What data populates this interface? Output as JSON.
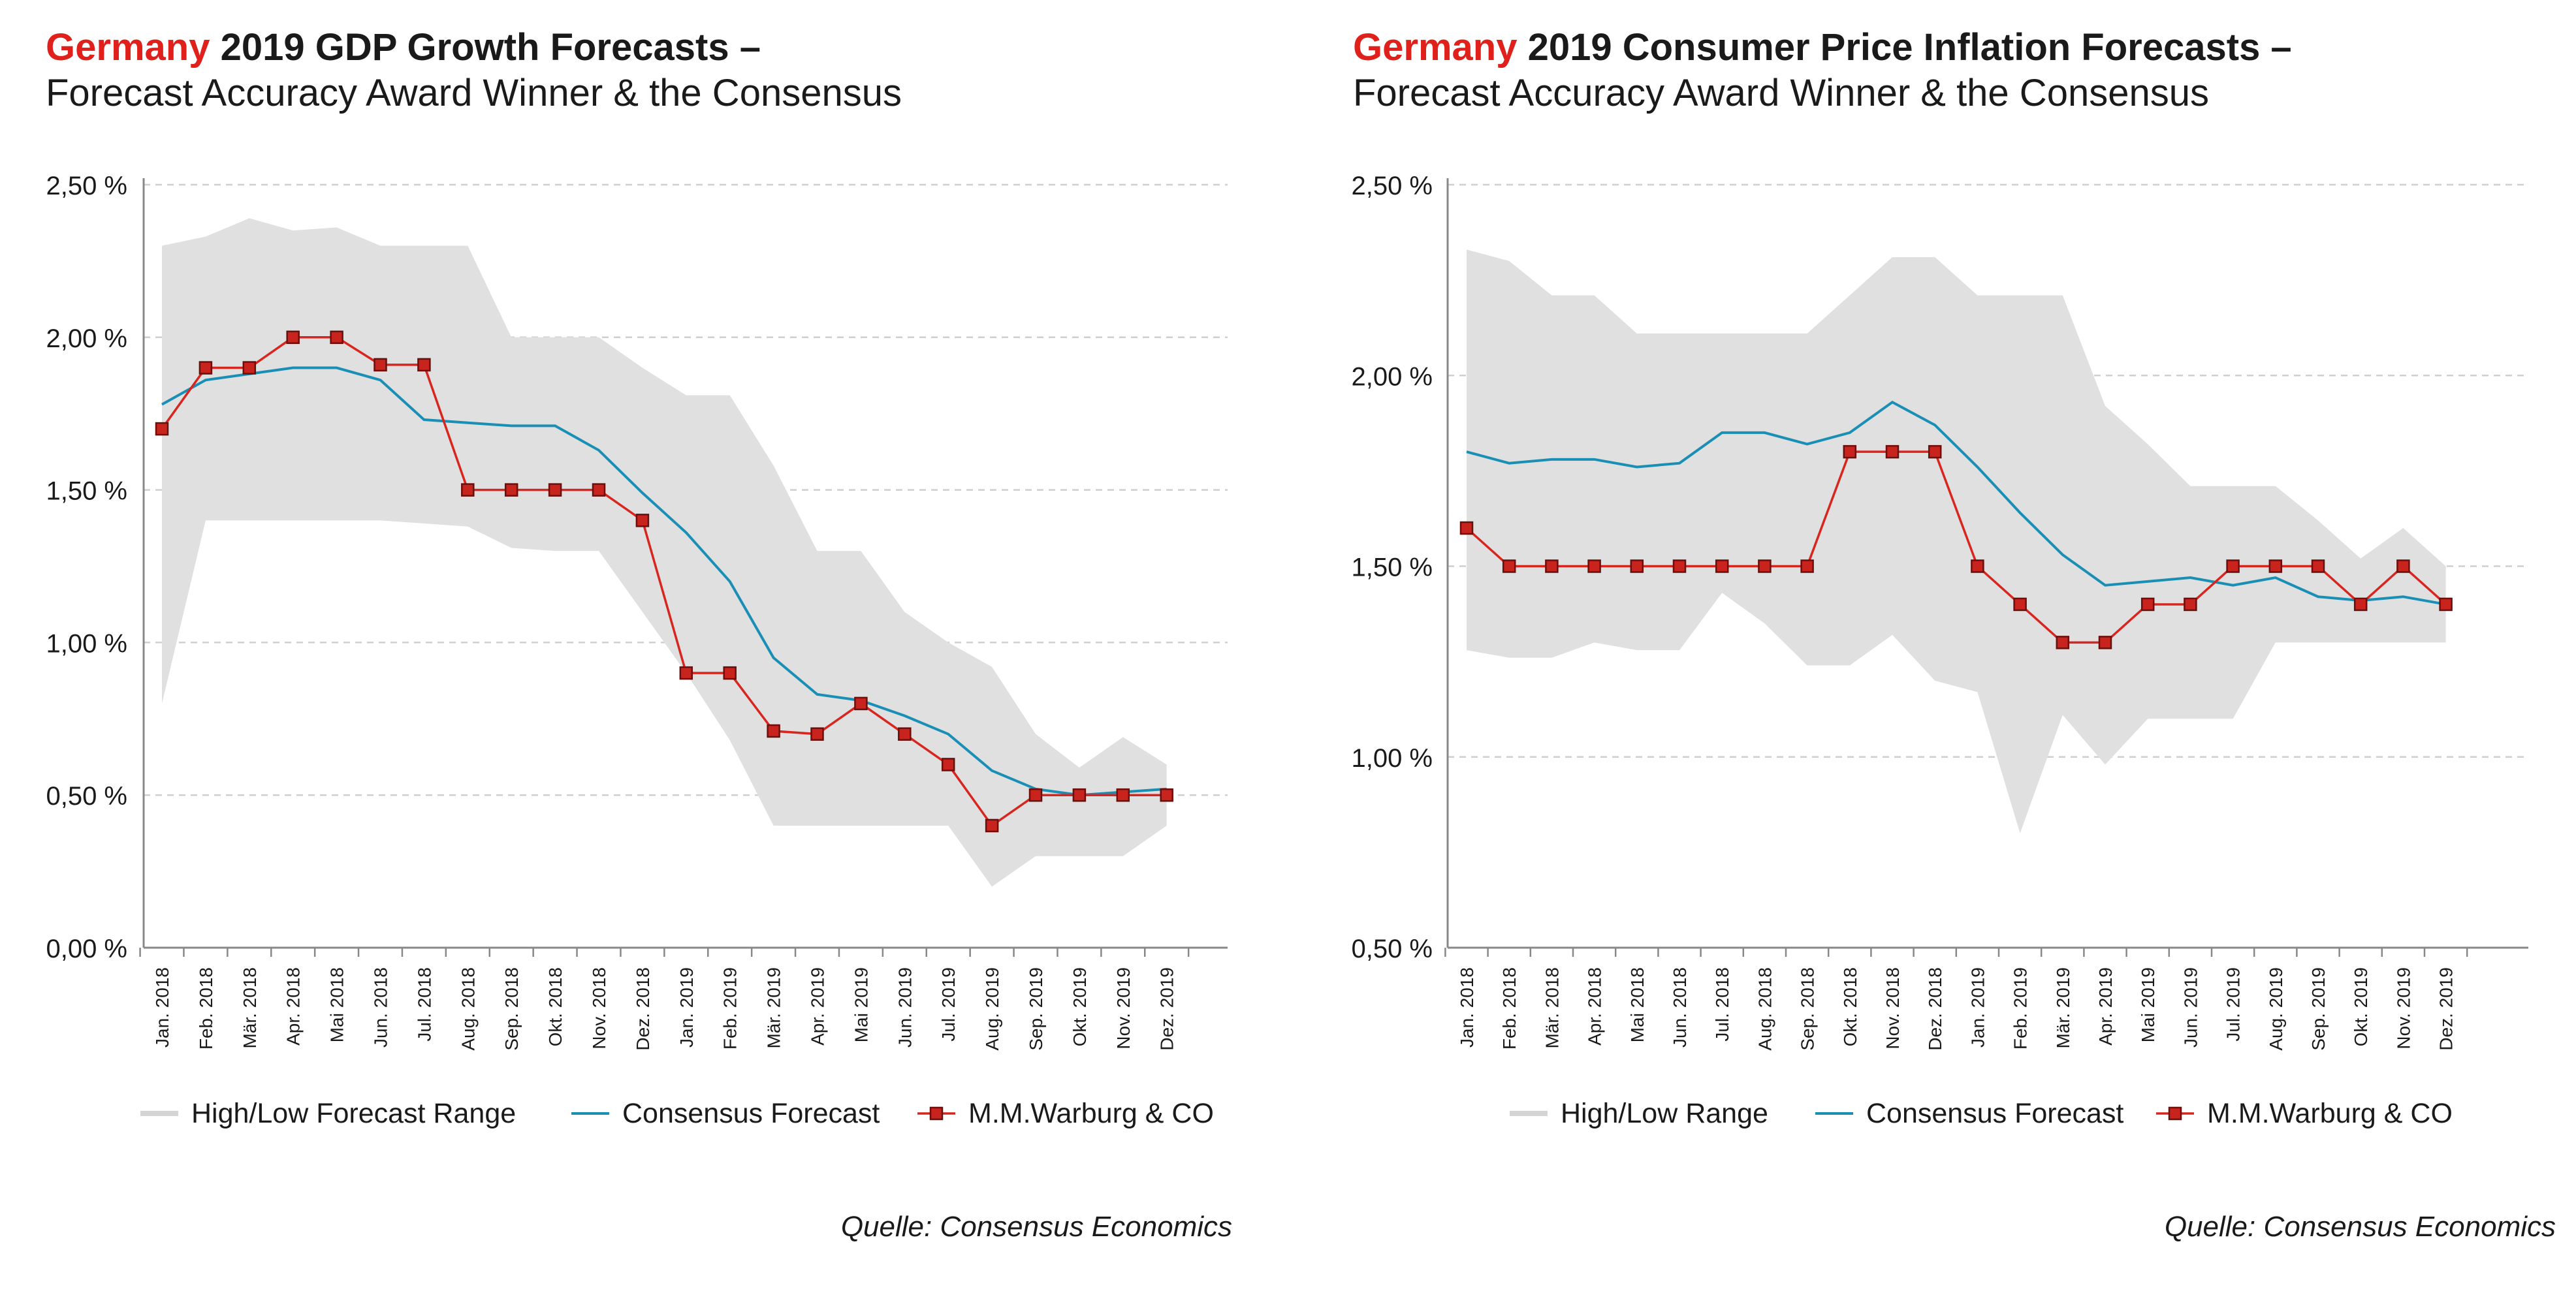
{
  "colors": {
    "brand_red": "#e0201b",
    "range_fill": "#e0e0e0",
    "consensus_line": "#1a8fb5",
    "warburg_line": "#d8261f",
    "warburg_marker": "#c9231e",
    "grid": "#cfcfcf",
    "axis": "#888888"
  },
  "charts": [
    {
      "title_country": "Germany",
      "title_rest": " 2019 GDP Growth Forecasts –",
      "subtitle": "Forecast Accuracy Award Winner & the Consensus",
      "source": "Quelle: Consensus Economics",
      "legend": {
        "range": "High/Low Forecast Range",
        "consensus": "Consensus Forecast",
        "warburg": "M.M.Warburg & CO"
      }
    },
    {
      "title_country": "Germany",
      "title_rest": " 2019 Consumer Price Inflation Forecasts –",
      "subtitle": "Forecast Accuracy Award Winner & the Consensus",
      "source": "Quelle: Consensus Economics",
      "legend": {
        "range": "High/Low Range",
        "consensus": "Consensus Forecast",
        "warburg": "M.M.Warburg & CO"
      }
    }
  ],
  "chart_data": [
    {
      "type": "line",
      "categories": [
        "Jan. 2018",
        "Feb. 2018",
        "Mär. 2018",
        "Apr. 2018",
        "Mai 2018",
        "Jun. 2018",
        "Jul. 2018",
        "Aug. 2018",
        "Sep. 2018",
        "Okt. 2018",
        "Nov. 2018",
        "Dez. 2018",
        "Jan. 2019",
        "Feb. 2019",
        "Mär. 2019",
        "Apr. 2019",
        "Mai 2019",
        "Jun. 2019",
        "Jul. 2019",
        "Aug. 2019",
        "Sep. 2019",
        "Okt. 2019",
        "Nov. 2019",
        "Dez. 2019"
      ],
      "yticks": [
        "0,00 %",
        "0,50 %",
        "1,00 %",
        "1,50 %",
        "2,00 %",
        "2,50 %"
      ],
      "ylim": [
        0,
        2.5
      ],
      "grid": true,
      "legend_position": "bottom",
      "series": [
        {
          "name": "High/Low Forecast Range",
          "kind": "range",
          "high": [
            2.3,
            2.33,
            2.39,
            2.35,
            2.36,
            2.3,
            2.3,
            2.3,
            2.0,
            2.0,
            2.0,
            1.9,
            1.81,
            1.81,
            1.58,
            1.3,
            1.3,
            1.1,
            1.0,
            0.92,
            0.7,
            0.59,
            0.69,
            0.6
          ],
          "low": [
            0.8,
            1.4,
            1.4,
            1.4,
            1.4,
            1.4,
            1.39,
            1.38,
            1.31,
            1.3,
            1.3,
            1.1,
            0.9,
            0.68,
            0.4,
            0.4,
            0.4,
            0.4,
            0.4,
            0.2,
            0.3,
            0.3,
            0.3,
            0.4
          ]
        },
        {
          "name": "Consensus Forecast",
          "kind": "line",
          "values": [
            1.78,
            1.86,
            1.88,
            1.9,
            1.9,
            1.86,
            1.73,
            1.72,
            1.71,
            1.71,
            1.63,
            1.49,
            1.36,
            1.2,
            0.95,
            0.83,
            0.81,
            0.76,
            0.7,
            0.58,
            0.52,
            0.5,
            0.51,
            0.52
          ]
        },
        {
          "name": "M.M.Warburg & CO",
          "kind": "marker-line",
          "values": [
            1.7,
            1.9,
            1.9,
            2.0,
            2.0,
            1.91,
            1.91,
            1.5,
            1.5,
            1.5,
            1.5,
            1.4,
            0.9,
            0.9,
            0.71,
            0.7,
            0.8,
            0.7,
            0.6,
            0.4,
            0.5,
            0.5,
            0.5,
            0.5
          ]
        }
      ]
    },
    {
      "type": "line",
      "categories": [
        "Jan. 2018",
        "Feb. 2018",
        "Mär. 2018",
        "Apr. 2018",
        "Mai 2018",
        "Jun. 2018",
        "Jul. 2018",
        "Aug. 2018",
        "Sep. 2018",
        "Okt. 2018",
        "Nov. 2018",
        "Dez. 2018",
        "Jan. 2019",
        "Feb. 2019",
        "Mär. 2019",
        "Apr. 2019",
        "Mai 2019",
        "Jun. 2019",
        "Jul. 2019",
        "Aug. 2019",
        "Sep. 2019",
        "Okt. 2019",
        "Nov. 2019",
        "Dez. 2019"
      ],
      "yticks": [
        "0,50 %",
        "1,00 %",
        "1,50 %",
        "2,00 %",
        "2,50 %"
      ],
      "ylim": [
        0.5,
        2.5
      ],
      "grid": true,
      "legend_position": "bottom",
      "series": [
        {
          "name": "High/Low Range",
          "kind": "range",
          "high": [
            2.33,
            2.3,
            2.21,
            2.21,
            2.11,
            2.11,
            2.11,
            2.11,
            2.11,
            2.21,
            2.31,
            2.31,
            2.21,
            2.21,
            2.21,
            1.92,
            1.82,
            1.71,
            1.71,
            1.71,
            1.62,
            1.52,
            1.6,
            1.5
          ],
          "low": [
            1.28,
            1.26,
            1.26,
            1.3,
            1.28,
            1.28,
            1.43,
            1.35,
            1.24,
            1.24,
            1.32,
            1.2,
            1.17,
            0.8,
            1.11,
            0.98,
            1.1,
            1.1,
            1.1,
            1.3,
            1.3,
            1.3,
            1.3,
            1.3
          ]
        },
        {
          "name": "Consensus Forecast",
          "kind": "line",
          "values": [
            1.8,
            1.77,
            1.78,
            1.78,
            1.76,
            1.77,
            1.85,
            1.85,
            1.82,
            1.85,
            1.93,
            1.87,
            1.76,
            1.64,
            1.53,
            1.45,
            1.46,
            1.47,
            1.45,
            1.47,
            1.42,
            1.41,
            1.42,
            1.4
          ]
        },
        {
          "name": "M.M.Warburg & CO",
          "kind": "marker-line",
          "values": [
            1.6,
            1.5,
            1.5,
            1.5,
            1.5,
            1.5,
            1.5,
            1.5,
            1.5,
            1.8,
            1.8,
            1.8,
            1.5,
            1.4,
            1.3,
            1.3,
            1.4,
            1.4,
            1.5,
            1.5,
            1.5,
            1.4,
            1.5,
            1.4
          ]
        }
      ]
    }
  ]
}
